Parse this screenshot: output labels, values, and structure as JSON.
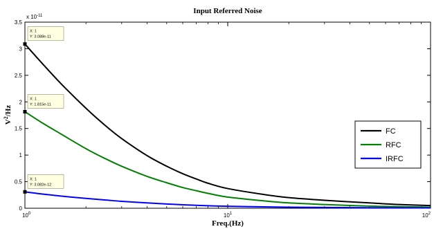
{
  "chart_data": {
    "type": "line",
    "title": "Input Referred Noise",
    "xlabel": "Freq.(Hz)",
    "ylabel_main": "V",
    "ylabel_sup": "2",
    "ylabel_rest": "/Hz",
    "x_scale": "log",
    "xlim": [
      1,
      100
    ],
    "ylim": [
      0,
      3.5e-11
    ],
    "y_multiplier": {
      "base": "x 10",
      "exp": "-11"
    },
    "y_ticks": [
      {
        "value": 0,
        "label": "0"
      },
      {
        "value": 0.5,
        "label": "0.5"
      },
      {
        "value": 1,
        "label": "1"
      },
      {
        "value": 1.5,
        "label": "1.5"
      },
      {
        "value": 2,
        "label": "2"
      },
      {
        "value": 2.5,
        "label": "2.5"
      },
      {
        "value": 3,
        "label": "3"
      },
      {
        "value": 3.5,
        "label": "3.5"
      }
    ],
    "x_ticks": [
      {
        "value": 1,
        "base": "10",
        "exp": "0"
      },
      {
        "value": 10,
        "base": "10",
        "exp": "1"
      },
      {
        "value": 100,
        "base": "10",
        "exp": "2"
      }
    ],
    "grid": false,
    "legend_position": "right",
    "x": [
      1,
      1.2,
      1.5,
      2,
      2.5,
      3,
      4,
      5,
      6,
      7,
      8,
      10,
      15,
      20,
      30,
      50,
      70,
      100
    ],
    "series": [
      {
        "name": "FC",
        "color": "#000000",
        "values": [
          3.088,
          2.75,
          2.35,
          1.88,
          1.55,
          1.31,
          0.99,
          0.79,
          0.65,
          0.55,
          0.47,
          0.37,
          0.26,
          0.2,
          0.15,
          0.1,
          0.07,
          0.05
        ]
      },
      {
        "name": "RFC",
        "color": "#008000",
        "values": [
          1.815,
          1.62,
          1.4,
          1.12,
          0.93,
          0.79,
          0.6,
          0.48,
          0.39,
          0.33,
          0.28,
          0.21,
          0.14,
          0.1,
          0.07,
          0.04,
          0.03,
          0.02
        ]
      },
      {
        "name": "IRFC",
        "color": "#0000ff",
        "values": [
          0.3082,
          0.27,
          0.23,
          0.185,
          0.155,
          0.13,
          0.1,
          0.08,
          0.065,
          0.055,
          0.047,
          0.037,
          0.026,
          0.02,
          0.015,
          0.01,
          0.008,
          0.006
        ]
      }
    ],
    "datatips": [
      {
        "series": "FC",
        "x": 1,
        "y": 3.088,
        "line1": "X: 1",
        "line2": "Y: 3.088e-11"
      },
      {
        "series": "RFC",
        "x": 1,
        "y": 1.815,
        "line1": "X: 1",
        "line2": "Y: 1.815e-11"
      },
      {
        "series": "IRFC",
        "x": 1,
        "y": 0.3082,
        "line1": "X: 1",
        "line2": "Y: 3.082e-12"
      }
    ]
  }
}
